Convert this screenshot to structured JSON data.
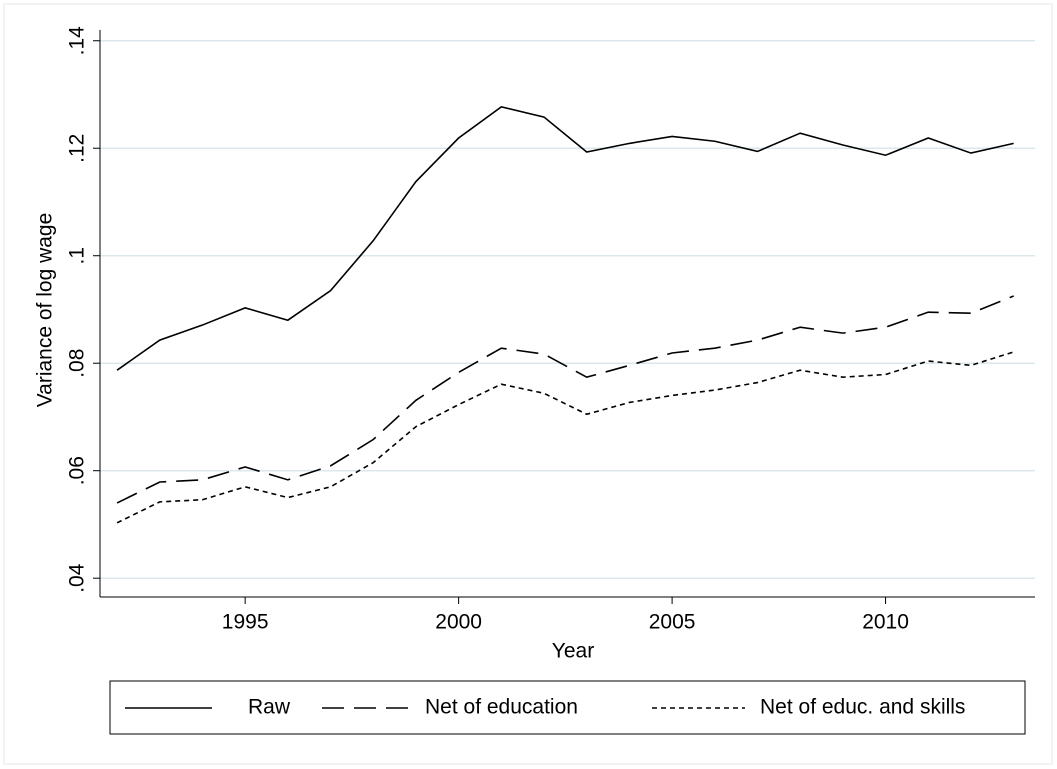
{
  "chart_data": {
    "type": "line",
    "x_label": "Year",
    "y_label": "Variance of log wage",
    "x": [
      1992,
      1993,
      1994,
      1995,
      1996,
      1997,
      1998,
      1999,
      2000,
      2001,
      2002,
      2003,
      2004,
      2005,
      2006,
      2007,
      2008,
      2009,
      2010,
      2011,
      2012,
      2013
    ],
    "series": [
      {
        "name": "Raw",
        "color": "#000000",
        "dash": "solid",
        "values": [
          0.0787,
          0.0843,
          0.0871,
          0.0903,
          0.088,
          0.0935,
          0.1028,
          0.1138,
          0.1219,
          0.1277,
          0.1258,
          0.1193,
          0.1209,
          0.1222,
          0.1213,
          0.1194,
          0.1228,
          0.1206,
          0.1187,
          0.1219,
          0.1191,
          0.1209
        ]
      },
      {
        "name": "Net of education",
        "color": "#000000",
        "dash": "long",
        "values": [
          0.054,
          0.0579,
          0.0583,
          0.0607,
          0.0583,
          0.0609,
          0.0658,
          0.0731,
          0.0783,
          0.0828,
          0.0817,
          0.0774,
          0.0796,
          0.0819,
          0.0828,
          0.0843,
          0.0867,
          0.0856,
          0.0867,
          0.0895,
          0.0893,
          0.0925
        ]
      },
      {
        "name": "Net of educ. and skills",
        "color": "#000000",
        "dash": "short",
        "values": [
          0.0503,
          0.0542,
          0.0546,
          0.057,
          0.055,
          0.057,
          0.0615,
          0.0682,
          0.0723,
          0.0761,
          0.0744,
          0.0705,
          0.0727,
          0.074,
          0.075,
          0.0764,
          0.0787,
          0.0774,
          0.0779,
          0.0804,
          0.0796,
          0.0821
        ]
      }
    ],
    "xlim": [
      1991.6,
      2013.5
    ],
    "xticks": [
      1995,
      2000,
      2005,
      2010
    ],
    "ylim": [
      0.0365,
      0.142
    ],
    "yticks": [
      {
        "value": 0.04,
        "label": ".04"
      },
      {
        "value": 0.06,
        "label": ".06"
      },
      {
        "value": 0.08,
        "label": ".08"
      },
      {
        "value": 0.1,
        "label": ".1"
      },
      {
        "value": 0.12,
        "label": ".12"
      },
      {
        "value": 0.14,
        "label": ".14"
      }
    ],
    "grid": true,
    "grid_color": "#dce7ec",
    "legend": "bottom"
  }
}
